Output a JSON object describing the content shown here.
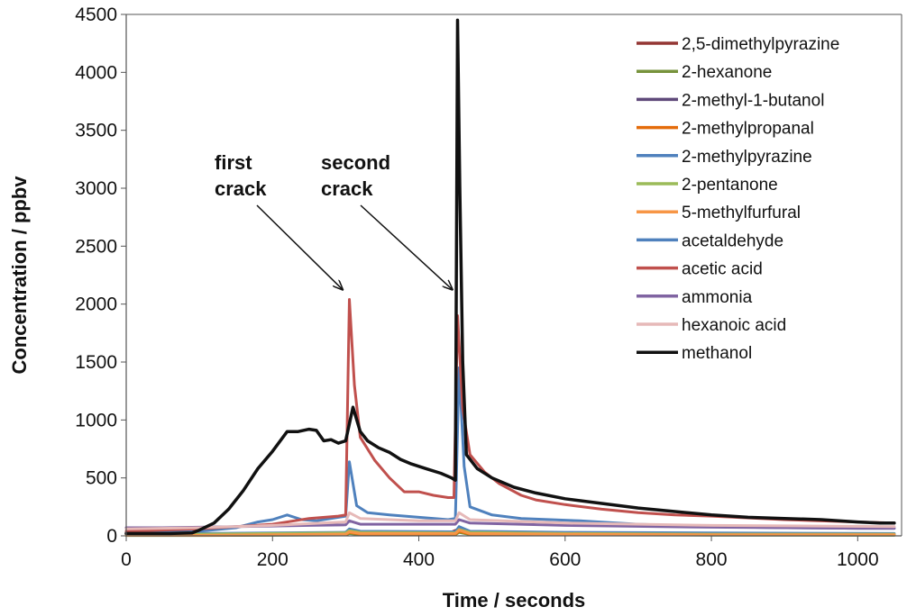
{
  "chart_data": {
    "type": "line",
    "title": "",
    "xlabel": "Time / seconds",
    "ylabel": "Concentration / ppbv",
    "xlim": [
      0,
      1060
    ],
    "ylim": [
      0,
      4500
    ],
    "xticks": [
      0,
      200,
      400,
      600,
      800,
      1000
    ],
    "yticks": [
      0,
      500,
      1000,
      1500,
      2000,
      2500,
      3000,
      3500,
      4000,
      4500
    ],
    "grid": false,
    "legend_position": "top-right",
    "annotations": [
      {
        "lines": [
          "first",
          "crack"
        ],
        "points_to": {
          "x": 295,
          "y": 2130
        }
      },
      {
        "lines": [
          "second",
          "crack"
        ],
        "points_to": {
          "x": 445,
          "y": 2130
        }
      }
    ],
    "series": [
      {
        "name": "2,5-dimethylpyrazine",
        "color": "#943634",
        "x": [
          0,
          100,
          200,
          290,
          305,
          320,
          440,
          455,
          470,
          600,
          800,
          1000,
          1050
        ],
        "y": [
          5,
          5,
          10,
          15,
          40,
          25,
          20,
          60,
          25,
          15,
          10,
          8,
          8
        ]
      },
      {
        "name": "2-hexanone",
        "color": "#77933c",
        "x": [
          0,
          100,
          200,
          300,
          305,
          320,
          450,
          455,
          470,
          600,
          800,
          1050
        ],
        "y": [
          3,
          3,
          5,
          8,
          20,
          10,
          10,
          30,
          12,
          8,
          6,
          5
        ]
      },
      {
        "name": "2-methyl-1-butanol",
        "color": "#5f497a",
        "x": [
          0,
          100,
          200,
          300,
          305,
          320,
          450,
          455,
          470,
          600,
          800,
          1050
        ],
        "y": [
          10,
          10,
          15,
          20,
          50,
          30,
          25,
          70,
          30,
          20,
          15,
          12
        ]
      },
      {
        "name": "2-methylpropanal",
        "color": "#e46c0a",
        "x": [
          0,
          100,
          200,
          300,
          305,
          320,
          450,
          455,
          470,
          600,
          800,
          1050
        ],
        "y": [
          5,
          5,
          8,
          10,
          30,
          15,
          15,
          40,
          15,
          10,
          8,
          8
        ]
      },
      {
        "name": "2-methylpyrazine",
        "color": "#4f81bd",
        "x": [
          0,
          100,
          200,
          300,
          305,
          320,
          450,
          455,
          470,
          600,
          800,
          1050
        ],
        "y": [
          20,
          20,
          25,
          30,
          60,
          40,
          35,
          80,
          40,
          30,
          25,
          20
        ]
      },
      {
        "name": "2-pentanone",
        "color": "#9bbb59",
        "x": [
          0,
          100,
          200,
          300,
          305,
          320,
          450,
          455,
          470,
          600,
          800,
          1050
        ],
        "y": [
          15,
          15,
          20,
          25,
          45,
          30,
          25,
          55,
          30,
          20,
          15,
          15
        ]
      },
      {
        "name": "5-methylfurfural",
        "color": "#f79646",
        "x": [
          0,
          100,
          200,
          300,
          305,
          320,
          450,
          455,
          470,
          600,
          800,
          1050
        ],
        "y": [
          5,
          5,
          10,
          15,
          35,
          20,
          20,
          50,
          20,
          15,
          10,
          10
        ]
      },
      {
        "name": "acetaldehyde",
        "color": "#4f81bd",
        "x": [
          0,
          100,
          150,
          180,
          200,
          220,
          240,
          260,
          290,
          300,
          305,
          315,
          330,
          360,
          400,
          440,
          450,
          455,
          462,
          470,
          500,
          540,
          580,
          620,
          660,
          700,
          800,
          900,
          1000,
          1050
        ],
        "y": [
          30,
          40,
          70,
          120,
          140,
          180,
          140,
          130,
          160,
          170,
          640,
          260,
          200,
          180,
          160,
          140,
          150,
          1450,
          600,
          250,
          180,
          150,
          140,
          130,
          115,
          100,
          80,
          70,
          65,
          65
        ]
      },
      {
        "name": "acetic acid",
        "color": "#c0504d",
        "x": [
          0,
          100,
          150,
          200,
          250,
          290,
          300,
          305,
          312,
          320,
          340,
          360,
          380,
          400,
          420,
          440,
          448,
          453,
          460,
          470,
          490,
          510,
          540,
          560,
          600,
          650,
          700,
          750,
          800,
          900,
          1000,
          1050
        ],
        "y": [
          40,
          60,
          80,
          100,
          150,
          170,
          180,
          2040,
          1300,
          850,
          650,
          500,
          380,
          380,
          350,
          330,
          330,
          1900,
          1100,
          700,
          550,
          450,
          350,
          310,
          270,
          230,
          200,
          180,
          170,
          140,
          120,
          110
        ]
      },
      {
        "name": "ammonia",
        "color": "#8064a2",
        "x": [
          0,
          50,
          100,
          150,
          200,
          250,
          300,
          305,
          320,
          400,
          450,
          455,
          470,
          600,
          800,
          1000,
          1050
        ],
        "y": [
          70,
          70,
          75,
          80,
          85,
          90,
          95,
          130,
          100,
          100,
          100,
          140,
          110,
          90,
          75,
          65,
          65
        ]
      },
      {
        "name": "hexanoic acid",
        "color": "#e6b9b8",
        "x": [
          0,
          100,
          200,
          300,
          305,
          320,
          400,
          450,
          455,
          470,
          600,
          800,
          1050
        ],
        "y": [
          60,
          70,
          90,
          120,
          200,
          150,
          130,
          130,
          200,
          140,
          110,
          90,
          80
        ]
      },
      {
        "name": "methanol",
        "color": "#111111",
        "x": [
          0,
          60,
          90,
          100,
          120,
          140,
          160,
          180,
          200,
          220,
          235,
          250,
          260,
          270,
          280,
          290,
          300,
          310,
          320,
          330,
          345,
          360,
          375,
          390,
          410,
          430,
          445,
          450,
          453,
          456,
          460,
          465,
          480,
          500,
          530,
          560,
          600,
          650,
          700,
          750,
          800,
          850,
          900,
          950,
          1000,
          1030,
          1050
        ],
        "y": [
          20,
          20,
          25,
          50,
          110,
          230,
          390,
          580,
          730,
          900,
          900,
          920,
          910,
          820,
          830,
          800,
          820,
          1110,
          900,
          820,
          760,
          720,
          660,
          620,
          580,
          540,
          500,
          480,
          4450,
          3000,
          1500,
          700,
          580,
          500,
          420,
          370,
          320,
          280,
          240,
          210,
          180,
          160,
          150,
          140,
          120,
          110,
          110
        ]
      }
    ]
  }
}
